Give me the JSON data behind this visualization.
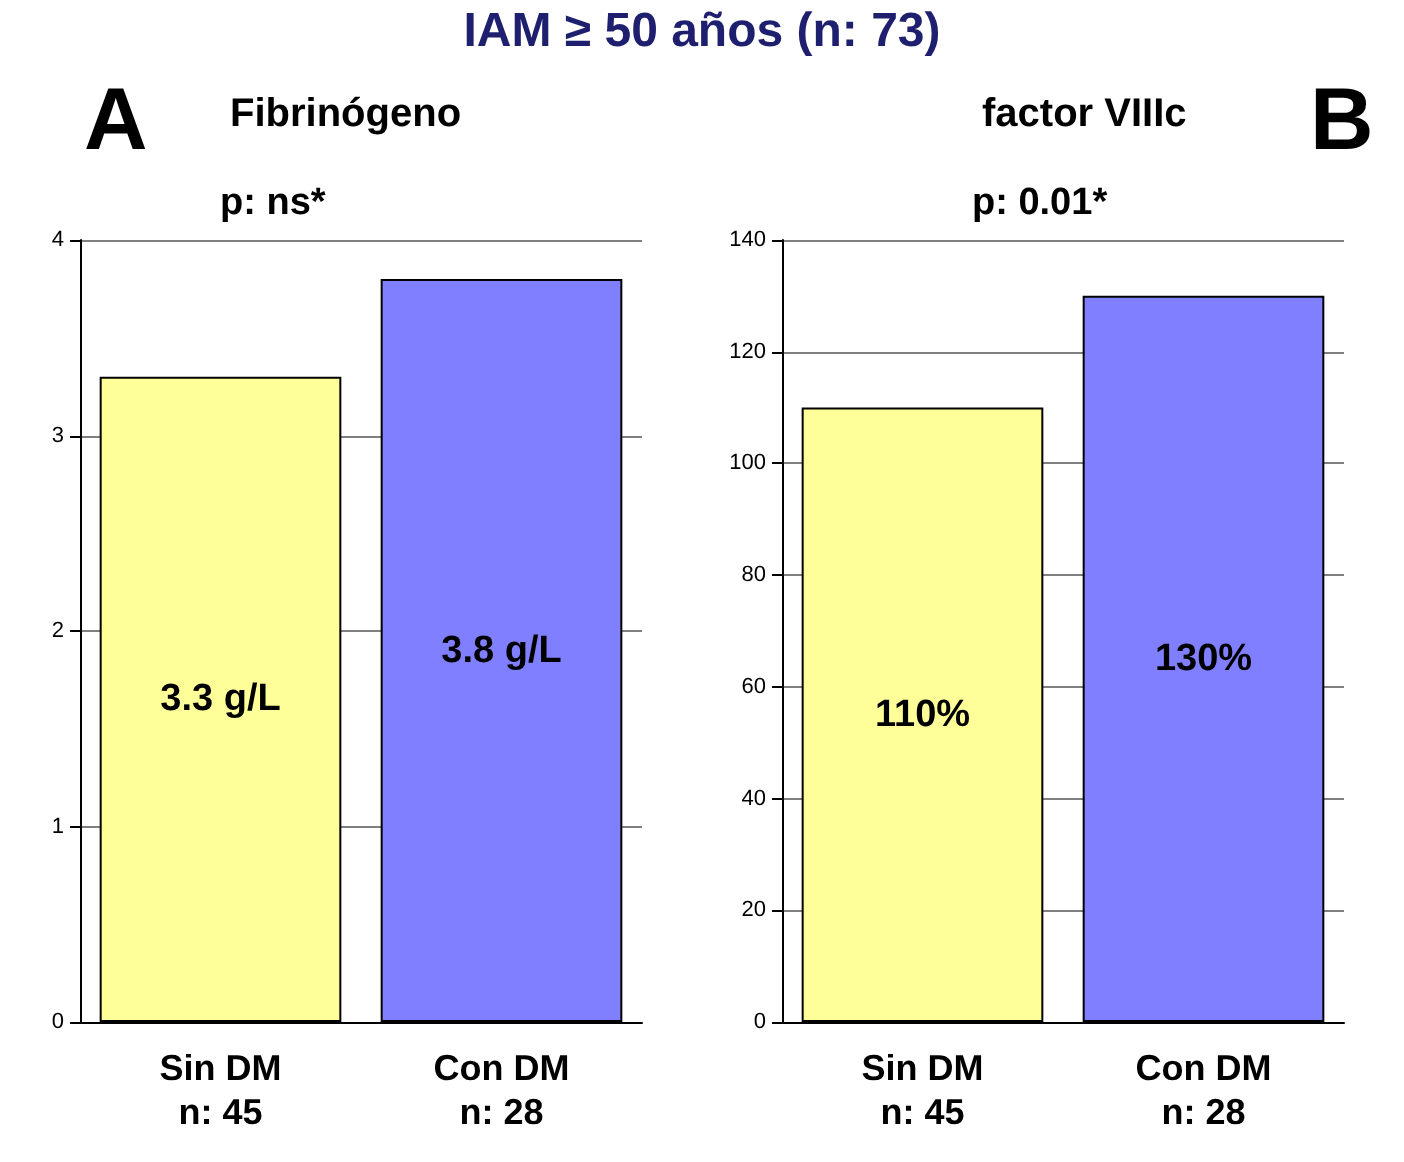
{
  "chart_data": [
    {
      "type": "bar",
      "title": "IAM ≥ 50 años (n: 73)",
      "subtitle": "Fibrinógeno",
      "annotations": [
        "A",
        "p: ns*"
      ],
      "categories": [
        "Sin DM\nn: 45",
        "Con DM\nn: 28"
      ],
      "values": [
        3.3,
        3.8
      ],
      "value_labels": [
        "3.3 g/L",
        "3.8 g/L"
      ],
      "colors": [
        "#ffff99",
        "#7f7fff"
      ],
      "ylim": [
        0,
        4
      ],
      "yticks": [
        0,
        1,
        2,
        3,
        4
      ],
      "grid": "y"
    },
    {
      "type": "bar",
      "subtitle": "factor VIIIc",
      "annotations": [
        "B",
        "p: 0.01*"
      ],
      "categories": [
        "Sin DM\nn: 45",
        "Con DM\nn: 28"
      ],
      "values": [
        110,
        130
      ],
      "value_labels": [
        "110%",
        "130%"
      ],
      "colors": [
        "#ffff99",
        "#7f7fff"
      ],
      "ylim": [
        0,
        140
      ],
      "yticks": [
        0,
        20,
        40,
        60,
        80,
        100,
        120,
        140
      ],
      "grid": "y"
    }
  ]
}
